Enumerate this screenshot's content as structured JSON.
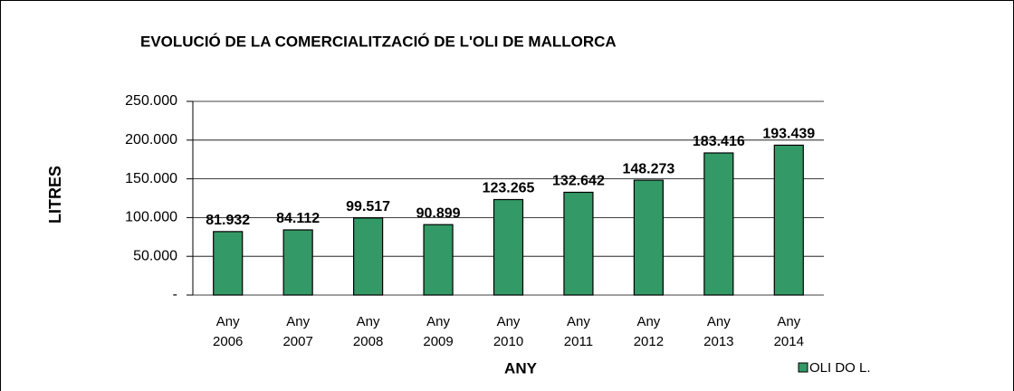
{
  "chart_data": {
    "type": "bar",
    "title": "EVOLUCIÓ DE LA COMERCIALITZACIÓ DE L'OLI DE MALLORCA",
    "x_label": "ANY",
    "y_label": "LITRES",
    "categories": [
      "Any 2006",
      "Any 2007",
      "Any 2008",
      "Any 2009",
      "Any 2010",
      "Any 2011",
      "Any 2012",
      "Any 2013",
      "Any 2014"
    ],
    "series": [
      {
        "name": "OLI DO L.",
        "color": "#339966",
        "values": [
          81932,
          84112,
          99517,
          90899,
          123265,
          132642,
          148273,
          183416,
          193439
        ],
        "value_labels": [
          "81.932",
          "84.112",
          "99.517",
          "90.899",
          "123.265",
          "132.642",
          "148.273",
          "183.416",
          "193.439"
        ]
      }
    ],
    "ylim": [
      0,
      250000
    ],
    "yticks": [
      {
        "value": 0,
        "label": "-"
      },
      {
        "value": 50000,
        "label": "50.000"
      },
      {
        "value": 100000,
        "label": "100.000"
      },
      {
        "value": 150000,
        "label": "150.000"
      },
      {
        "value": 200000,
        "label": "200.000"
      },
      {
        "value": 250000,
        "label": "250.000"
      }
    ],
    "grid": true,
    "legend": "bottom-right"
  }
}
